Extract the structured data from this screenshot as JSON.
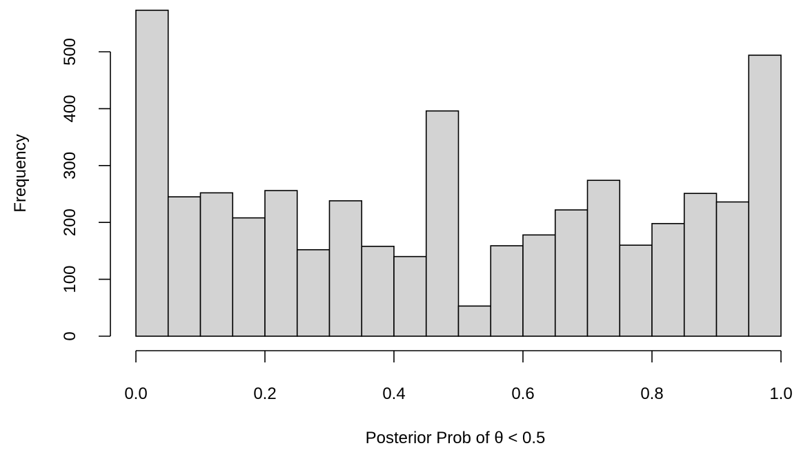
{
  "chart_data": {
    "type": "bar",
    "title": "",
    "xlabel": "Posterior Prob of θ < 0.5",
    "ylabel": "Frequency",
    "bin_width": 0.05,
    "bin_edges": [
      0.0,
      0.05,
      0.1,
      0.15,
      0.2,
      0.25,
      0.3,
      0.35,
      0.4,
      0.45,
      0.5,
      0.55,
      0.6,
      0.65,
      0.7,
      0.75,
      0.8,
      0.85,
      0.9,
      0.95,
      1.0
    ],
    "values": [
      573,
      245,
      252,
      208,
      256,
      152,
      238,
      158,
      140,
      396,
      53,
      159,
      178,
      222,
      274,
      160,
      198,
      251,
      236,
      494
    ],
    "xlim": [
      0.0,
      1.0
    ],
    "ylim": [
      0,
      573
    ],
    "x_ticks": [
      0.0,
      0.2,
      0.4,
      0.6,
      0.8,
      1.0
    ],
    "x_tick_labels": [
      "0.0",
      "0.2",
      "0.4",
      "0.6",
      "0.8",
      "1.0"
    ],
    "y_ticks": [
      0,
      100,
      200,
      300,
      400,
      500
    ],
    "y_tick_labels": [
      "0",
      "100",
      "200",
      "300",
      "400",
      "500"
    ],
    "bar_color": "#d3d3d3",
    "edge_color": "#000000",
    "grid": false,
    "legend": "none"
  }
}
